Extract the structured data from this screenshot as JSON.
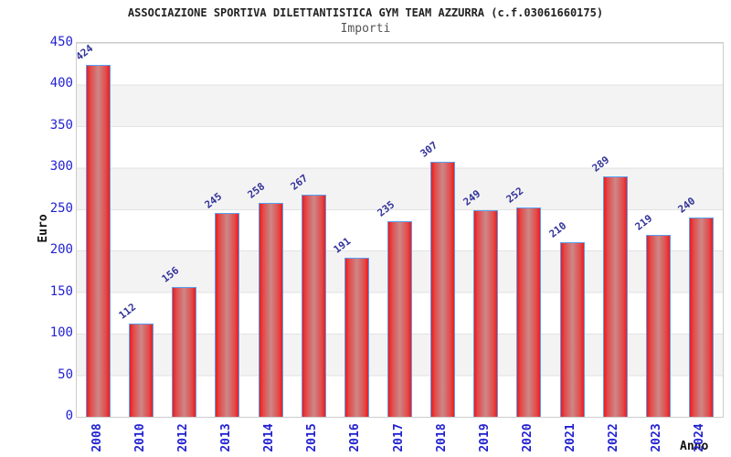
{
  "header": {
    "title": "ASSOCIAZIONE SPORTIVA DILETTANTISTICA GYM TEAM AZZURRA (c.f.03061660175)",
    "subtitle": "Importi"
  },
  "chart_data": {
    "type": "bar",
    "title": "Importi",
    "xlabel": "Anno",
    "ylabel": "Euro",
    "categories": [
      "2008",
      "2010",
      "2012",
      "2013",
      "2014",
      "2015",
      "2016",
      "2017",
      "2018",
      "2019",
      "2020",
      "2021",
      "2022",
      "2023",
      "2024"
    ],
    "values": [
      424,
      112,
      156,
      245,
      258,
      267,
      191,
      235,
      307,
      249,
      252,
      210,
      289,
      219,
      240
    ],
    "ylim": [
      0,
      450
    ],
    "ytick_step": 50,
    "yticks": [
      0,
      50,
      100,
      150,
      200,
      250,
      300,
      350,
      400,
      450
    ],
    "grid": "horizontal-gridlines-with-alternating-bands",
    "legend_position": "none",
    "value_labels": "above-bars-diagonal",
    "colors": {
      "bar_edge": "#ee1b1b",
      "bar_center": "#cd8787",
      "bar_border": "#5a9ff0",
      "axis_tick_label": "#2222d2",
      "value_label": "#32329b",
      "band_fill": "#f3f3f3",
      "grid_line": "#e2e2e2",
      "plot_border": "#cccccc",
      "title_color": "#222222",
      "subtitle_color": "#555555"
    }
  }
}
